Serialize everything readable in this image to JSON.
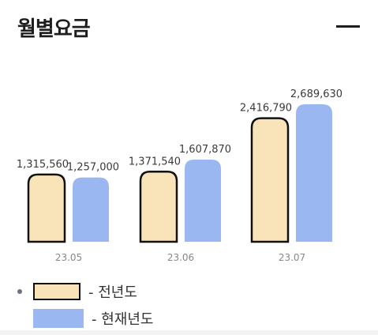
{
  "header": {
    "title": "월별요금"
  },
  "icons": {
    "collapse": "minus-icon",
    "bullet": "dot-icon"
  },
  "colors": {
    "prev": "#f8e4b8",
    "prev_border": "#111111",
    "cur": "#9ab7f1"
  },
  "legend": {
    "prev_label": "- 전년도",
    "cur_label": "- 현재년도"
  },
  "chart_data": {
    "type": "bar",
    "categories": [
      "23.05",
      "23.06",
      "23.07"
    ],
    "series": [
      {
        "name": "전년도",
        "values": [
          1315560,
          1371540,
          2416790
        ],
        "labels": [
          "1,315,560",
          "1,371,540",
          "2,416,790"
        ]
      },
      {
        "name": "현재년도",
        "values": [
          1257000,
          1607870,
          2689630
        ],
        "labels": [
          "1,257,000",
          "1,607,870",
          "2,689,630"
        ]
      }
    ],
    "title": "월별요금",
    "xlabel": "",
    "ylabel": "",
    "grid": false,
    "legend_position": "bottom-left"
  }
}
